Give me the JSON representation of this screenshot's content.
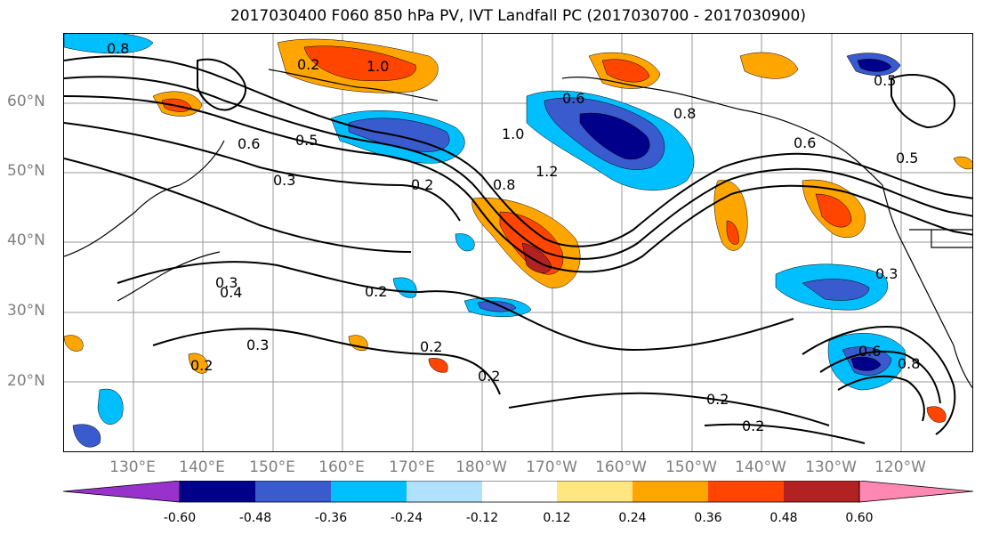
{
  "title": "2017030400 F060 850 hPa PV, IVT Landfall PC (2017030700 - 2017030900)",
  "lat_labels": [
    "60°N",
    "50°N",
    "40°N",
    "30°N",
    "20°N"
  ],
  "lon_labels": [
    "130°E",
    "140°E",
    "150°E",
    "160°E",
    "170°E",
    "180°W",
    "170°W",
    "160°W",
    "150°W",
    "140°W",
    "130°W",
    "120°W"
  ],
  "contour_labels": [
    "0.8",
    "0.6",
    "0.5",
    "1.0",
    "0.6",
    "0.8",
    "1.0",
    "0.8",
    "1.2",
    "0.6",
    "0.5",
    "0.3",
    "0.2",
    "0.2",
    "0.2",
    "0.2",
    "0.2",
    "0.2",
    "0.3",
    "0.3",
    "0.2",
    "0.2",
    "0.5",
    "0.6",
    "0.8",
    "0.4",
    "0.3"
  ],
  "colorbar": {
    "ticks": [
      "-0.60",
      "-0.48",
      "-0.36",
      "-0.24",
      "-0.12",
      "0.12",
      "0.24",
      "0.36",
      "0.48",
      "0.60"
    ],
    "colors": {
      "lt_neg060": "#9932cc",
      "neg060_neg048": "#00008b",
      "neg048_neg036": "#3a5bcd",
      "neg036_neg024": "#00bfff",
      "neg024_neg012": "#b0e2ff",
      "neg012_012": "#ffffff",
      "p012_024": "#ffe680",
      "p024_036": "#ffa500",
      "p036_048": "#ff4500",
      "p048_060": "#b22222",
      "gt_060": "#ff88b2"
    }
  }
}
